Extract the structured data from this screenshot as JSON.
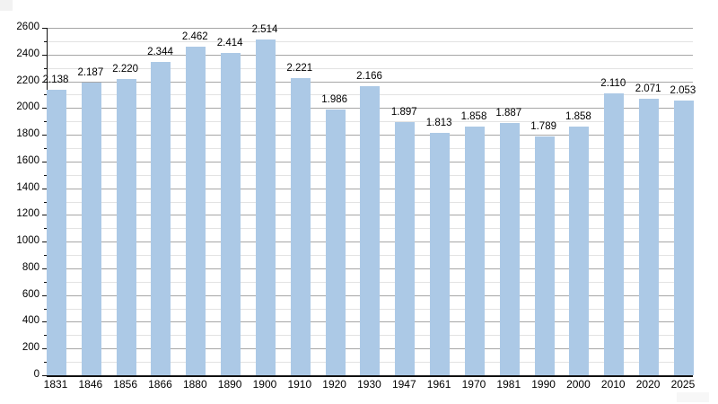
{
  "chart_data": {
    "type": "bar",
    "title": "",
    "xlabel": "",
    "ylabel": "",
    "categories": [
      "1831",
      "1846",
      "1856",
      "1866",
      "1880",
      "1890",
      "1900",
      "1910",
      "1920",
      "1930",
      "1947",
      "1961",
      "1970",
      "1981",
      "1990",
      "2000",
      "2010",
      "2020",
      "2025"
    ],
    "values": [
      2138,
      2187,
      2220,
      2344,
      2462,
      2414,
      2514,
      2221,
      1986,
      2166,
      1897,
      1813,
      1858,
      1887,
      1789,
      1858,
      2110,
      2071,
      2053
    ],
    "value_labels": [
      "2.138",
      "2.187",
      "2.220",
      "2.344",
      "2.462",
      "2.414",
      "2.514",
      "2.221",
      "1.986",
      "2.166",
      "1.897",
      "1.813",
      "1.858",
      "1.887",
      "1.789",
      "1.858",
      "2.110",
      "2.071",
      "2.053"
    ],
    "ylim": [
      0,
      2600
    ],
    "y_major_step": 200,
    "y_minor_step": 100,
    "y_tick_labels": [
      "0",
      "200",
      "400",
      "600",
      "800",
      "1000",
      "1200",
      "1400",
      "1600",
      "1800",
      "2000",
      "2200",
      "2400",
      "2600"
    ],
    "grid": true,
    "legend": false,
    "legend_position": "none",
    "bar_color": "#acc9e6",
    "major_grid_color": "#a6a6a6",
    "minor_grid_color": "#e3e3e3",
    "axis_color": "#111111",
    "background_color": "#ffffff"
  }
}
